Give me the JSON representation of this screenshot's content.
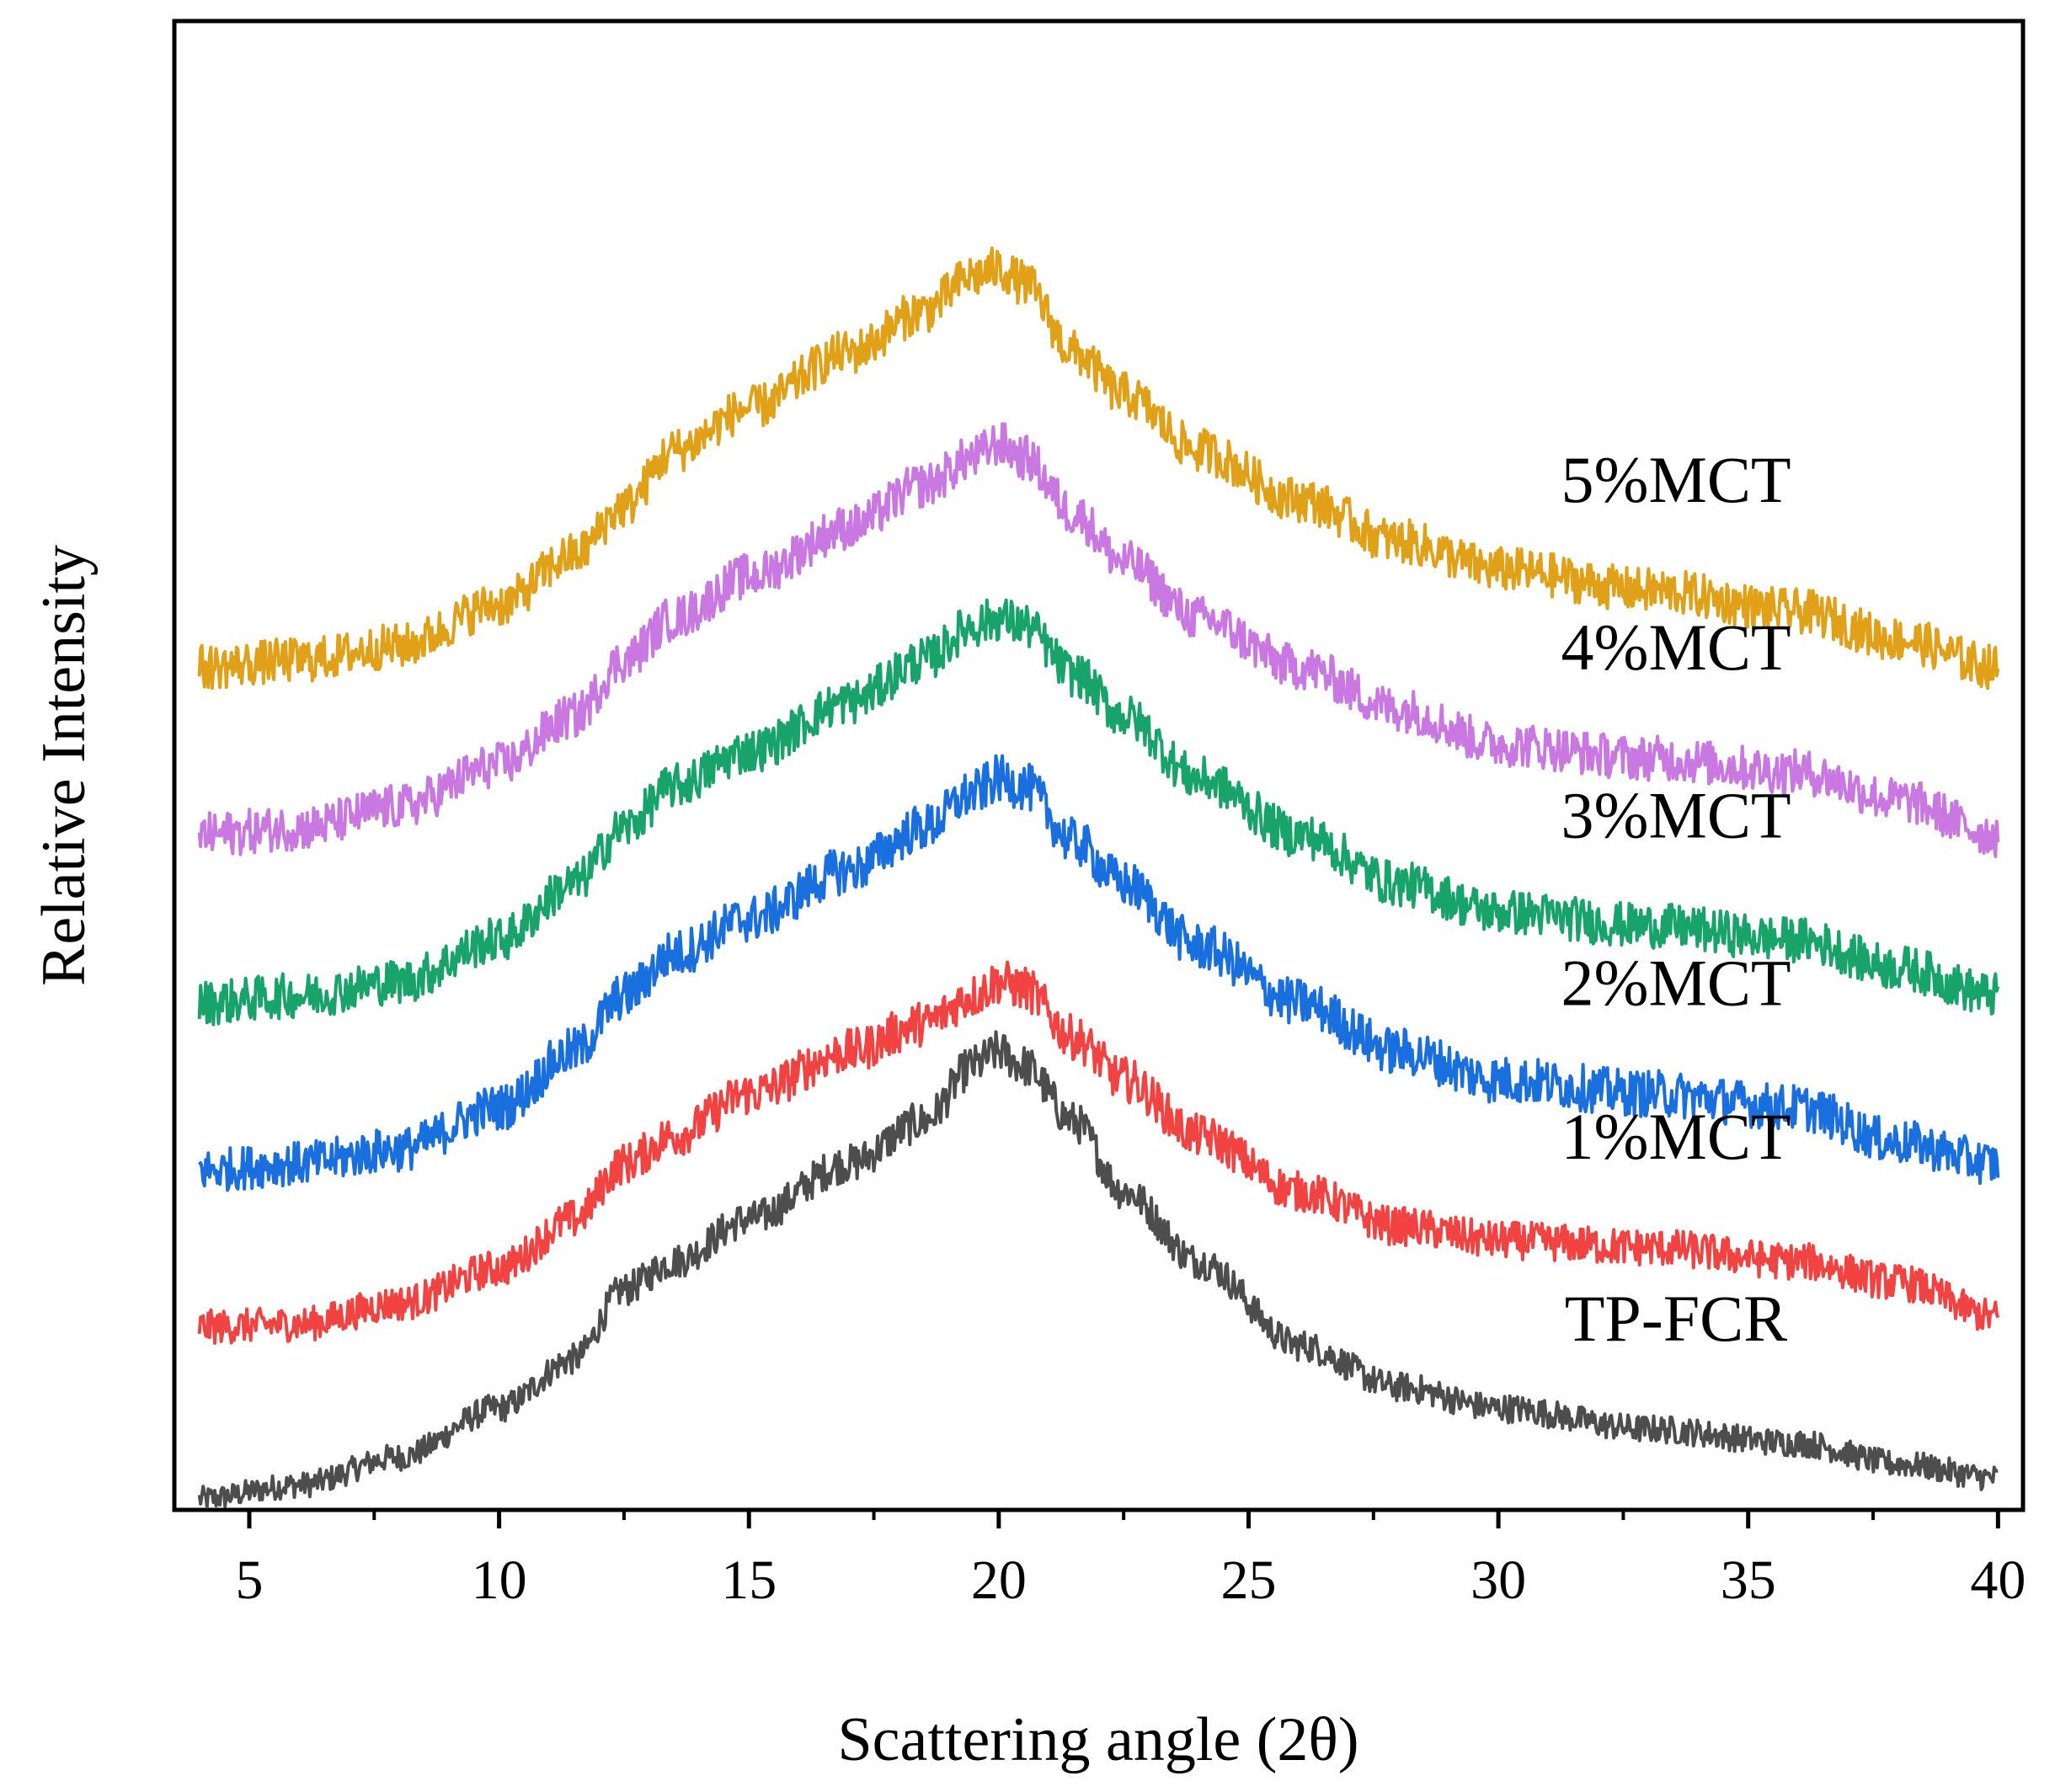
{
  "chart_data": {
    "type": "line",
    "title": "",
    "xlabel": "Scattering angle (2θ)",
    "ylabel": "Relative Intensity",
    "xlim": [
      3.5,
      40.5
    ],
    "ylim": [
      0,
      100
    ],
    "xticks": [
      5,
      10,
      15,
      20,
      25,
      30,
      35,
      40
    ],
    "xtick_labels": [
      "5",
      "10",
      "15",
      "20",
      "25",
      "30",
      "35",
      "40"
    ],
    "yticks_shown": false,
    "grid": false,
    "x_range_data": [
      4,
      40
    ],
    "series": [
      {
        "name": "TP-FCR",
        "label": "TP-FCR",
        "color": "#4d4d4d",
        "baseline_at_4": 0,
        "points": [
          [
            4,
            0
          ],
          [
            6,
            1
          ],
          [
            8,
            3
          ],
          [
            10,
            6.5
          ],
          [
            11.5,
            10
          ],
          [
            12.5,
            15
          ],
          [
            13.5,
            17
          ],
          [
            15,
            20
          ],
          [
            17,
            24
          ],
          [
            18.5,
            27
          ],
          [
            19.5,
            31
          ],
          [
            20,
            32
          ],
          [
            20.5,
            31
          ],
          [
            21.5,
            27
          ],
          [
            22.5,
            22
          ],
          [
            24,
            17
          ],
          [
            26,
            11
          ],
          [
            28,
            8
          ],
          [
            30,
            6.5
          ],
          [
            33,
            5
          ],
          [
            36,
            4
          ],
          [
            38,
            2.5
          ],
          [
            40,
            1.5
          ]
        ],
        "noise": 1.5
      },
      {
        "name": "1%MCT",
        "label": "1%MCT",
        "color": "#f24343",
        "points": [
          [
            4,
            12.3
          ],
          [
            6,
            12.5
          ],
          [
            8,
            14
          ],
          [
            10,
            16.5
          ],
          [
            11.5,
            20
          ],
          [
            12.5,
            24
          ],
          [
            13.5,
            26
          ],
          [
            15,
            29
          ],
          [
            17,
            32
          ],
          [
            18.5,
            34
          ],
          [
            19.5,
            36
          ],
          [
            20,
            37
          ],
          [
            20.5,
            36.5
          ],
          [
            21.5,
            33
          ],
          [
            22.5,
            30
          ],
          [
            24,
            26
          ],
          [
            26,
            22
          ],
          [
            28,
            19.5
          ],
          [
            30,
            18.5
          ],
          [
            33,
            18
          ],
          [
            36,
            17
          ],
          [
            38,
            15.5
          ],
          [
            40,
            13
          ]
        ],
        "noise": 1.6
      },
      {
        "name": "2%MCT",
        "label": "2%MCT",
        "color": "#1a6fde",
        "points": [
          [
            4,
            23.5
          ],
          [
            6,
            24
          ],
          [
            8,
            25
          ],
          [
            10,
            28
          ],
          [
            11.5,
            32
          ],
          [
            12.5,
            36
          ],
          [
            13.5,
            39
          ],
          [
            15,
            41.5
          ],
          [
            17,
            45
          ],
          [
            18.5,
            48
          ],
          [
            19.5,
            50.5
          ],
          [
            20,
            51.5
          ],
          [
            20.5,
            51
          ],
          [
            21.5,
            47
          ],
          [
            22.5,
            44
          ],
          [
            24,
            39.5
          ],
          [
            26,
            35.5
          ],
          [
            28,
            32
          ],
          [
            30,
            30
          ],
          [
            33,
            29
          ],
          [
            36,
            28
          ],
          [
            38,
            25.5
          ],
          [
            40,
            24
          ]
        ],
        "noise": 1.7
      },
      {
        "name": "3%MCT",
        "label": "3%MCT",
        "color": "#17a36a",
        "points": [
          [
            4,
            35.5
          ],
          [
            6,
            36
          ],
          [
            8,
            37
          ],
          [
            10,
            40
          ],
          [
            11.5,
            44
          ],
          [
            12.5,
            48
          ],
          [
            13.5,
            51
          ],
          [
            15,
            53.5
          ],
          [
            17,
            57
          ],
          [
            18.5,
            60
          ],
          [
            19.5,
            62.5
          ],
          [
            20,
            63
          ],
          [
            20.5,
            62.5
          ],
          [
            21.5,
            59
          ],
          [
            22.5,
            56
          ],
          [
            24,
            51.5
          ],
          [
            26,
            47.5
          ],
          [
            28,
            44
          ],
          [
            30,
            42
          ],
          [
            33,
            41
          ],
          [
            36,
            40
          ],
          [
            38,
            38
          ],
          [
            40,
            36
          ]
        ],
        "noise": 1.6
      },
      {
        "name": "4%MCT",
        "label": "4%MCT",
        "color": "#c878e0",
        "points": [
          [
            4,
            47.5
          ],
          [
            6,
            48
          ],
          [
            8,
            49.5
          ],
          [
            10,
            52.5
          ],
          [
            11.5,
            56
          ],
          [
            12.5,
            60
          ],
          [
            13.5,
            63
          ],
          [
            15,
            66
          ],
          [
            17,
            69.5
          ],
          [
            18.5,
            72.5
          ],
          [
            19.5,
            74.5
          ],
          [
            20,
            75.5
          ],
          [
            20.5,
            74.5
          ],
          [
            21.5,
            70.5
          ],
          [
            22.5,
            67
          ],
          [
            24,
            63
          ],
          [
            26,
            59.5
          ],
          [
            28,
            56.5
          ],
          [
            30,
            54
          ],
          [
            33,
            53
          ],
          [
            36,
            52
          ],
          [
            38,
            50
          ],
          [
            40,
            47.5
          ]
        ],
        "noise": 1.6
      },
      {
        "name": "5%MCT",
        "label": "5%MCT",
        "color": "#e0a018",
        "points": [
          [
            4,
            59.5
          ],
          [
            6,
            60
          ],
          [
            8,
            61
          ],
          [
            10,
            64
          ],
          [
            11.5,
            67.5
          ],
          [
            12.5,
            71
          ],
          [
            13.5,
            75
          ],
          [
            15,
            78
          ],
          [
            17,
            82
          ],
          [
            18.5,
            85
          ],
          [
            19.5,
            87.5
          ],
          [
            20,
            88
          ],
          [
            20.5,
            87
          ],
          [
            21.5,
            82
          ],
          [
            22.5,
            79
          ],
          [
            24,
            75
          ],
          [
            26,
            71.5
          ],
          [
            28,
            68.5
          ],
          [
            30,
            66.5
          ],
          [
            33,
            65
          ],
          [
            36,
            63.5
          ],
          [
            38,
            61.5
          ],
          [
            40,
            59.5
          ]
        ],
        "noise": 1.6
      }
    ]
  }
}
